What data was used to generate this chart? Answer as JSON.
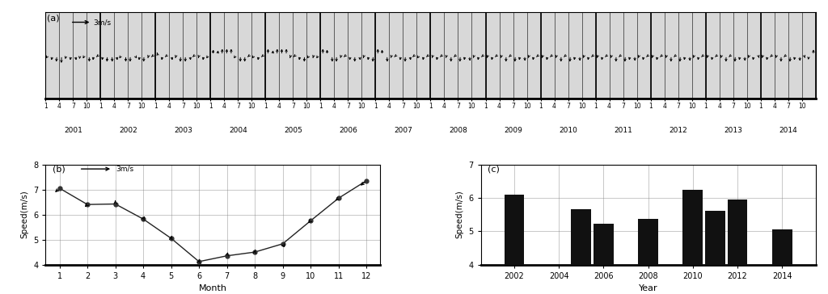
{
  "panel_a_label": "(a)",
  "panel_b_label": "(b)",
  "panel_c_label": "(c)",
  "years": [
    2001,
    2002,
    2003,
    2004,
    2005,
    2006,
    2007,
    2008,
    2009,
    2010,
    2011,
    2012,
    2013,
    2014
  ],
  "months_tick": [
    1,
    4,
    7,
    10
  ],
  "panel_b_months": [
    1,
    2,
    3,
    4,
    5,
    6,
    7,
    8,
    9,
    10,
    11,
    12
  ],
  "panel_b_speeds": [
    7.05,
    6.4,
    6.42,
    5.82,
    5.05,
    4.12,
    4.35,
    4.5,
    4.83,
    5.75,
    6.65,
    7.35
  ],
  "panel_b_arrow_u": [
    -1.2,
    -0.8,
    0.0,
    0.5,
    0.2,
    0.2,
    0.2,
    0.2,
    0.4,
    -0.8,
    -1.0,
    -1.5
  ],
  "panel_b_arrow_v": [
    -1.8,
    -1.2,
    1.2,
    1.4,
    1.4,
    1.4,
    1.2,
    1.4,
    -1.2,
    -1.2,
    -1.2,
    -2.0
  ],
  "panel_b_ylim": [
    4.0,
    8.0
  ],
  "panel_b_yticks": [
    4,
    5,
    6,
    7,
    8
  ],
  "panel_b_xlabel": "Month",
  "panel_b_ylabel": "Speed(m/s)",
  "panel_c_bar_years": [
    2002,
    2005,
    2006,
    2008,
    2010,
    2011,
    2012,
    2014
  ],
  "panel_c_bar_speeds": [
    6.1,
    5.65,
    5.22,
    5.38,
    6.25,
    5.62,
    5.95,
    5.05
  ],
  "panel_c_ylim": [
    4.0,
    7.0
  ],
  "panel_c_yticks": [
    4,
    5,
    6,
    7
  ],
  "panel_c_xticks": [
    2002,
    2004,
    2006,
    2008,
    2010,
    2012,
    2014
  ],
  "panel_c_xlabel": "Year",
  "panel_c_ylabel": "Speed(m/s)",
  "wind_data": [
    {
      "year": 2001,
      "month": 1,
      "u": -2.2,
      "v": -0.8
    },
    {
      "year": 2001,
      "month": 2,
      "u": -1.8,
      "v": -1.8
    },
    {
      "year": 2001,
      "month": 3,
      "u": -1.2,
      "v": -2.2
    },
    {
      "year": 2001,
      "month": 4,
      "u": -0.4,
      "v": -2.5
    },
    {
      "year": 2001,
      "month": 5,
      "u": -1.8,
      "v": -1.5
    },
    {
      "year": 2001,
      "month": 6,
      "u": -0.8,
      "v": -1.8
    },
    {
      "year": 2001,
      "month": 7,
      "u": 1.5,
      "v": -1.8
    },
    {
      "year": 2001,
      "month": 8,
      "u": -0.8,
      "v": -1.5
    },
    {
      "year": 2001,
      "month": 9,
      "u": -1.8,
      "v": -0.8
    },
    {
      "year": 2001,
      "month": 10,
      "u": 0.4,
      "v": -2.2
    },
    {
      "year": 2001,
      "month": 11,
      "u": -1.2,
      "v": -1.8
    },
    {
      "year": 2001,
      "month": 12,
      "u": -2.2,
      "v": -0.4
    },
    {
      "year": 2002,
      "month": 1,
      "u": -1.2,
      "v": -1.8
    },
    {
      "year": 2002,
      "month": 2,
      "u": -0.8,
      "v": -2.2
    },
    {
      "year": 2002,
      "month": 3,
      "u": 0.4,
      "v": -2.2
    },
    {
      "year": 2002,
      "month": 4,
      "u": 1.2,
      "v": -1.8
    },
    {
      "year": 2002,
      "month": 5,
      "u": -2.2,
      "v": -0.8
    },
    {
      "year": 2002,
      "month": 6,
      "u": 0.0,
      "v": -2.2
    },
    {
      "year": 2002,
      "month": 7,
      "u": -0.4,
      "v": -2.2
    },
    {
      "year": 2002,
      "month": 8,
      "u": 2.2,
      "v": -0.8
    },
    {
      "year": 2002,
      "month": 9,
      "u": -0.8,
      "v": -1.8
    },
    {
      "year": 2002,
      "month": 10,
      "u": -0.8,
      "v": -2.2
    },
    {
      "year": 2002,
      "month": 11,
      "u": -1.8,
      "v": -1.2
    },
    {
      "year": 2002,
      "month": 12,
      "u": -2.2,
      "v": -0.4
    },
    {
      "year": 2003,
      "month": 1,
      "u": -1.8,
      "v": 1.2
    },
    {
      "year": 2003,
      "month": 2,
      "u": -1.2,
      "v": -1.8
    },
    {
      "year": 2003,
      "month": 3,
      "u": -2.2,
      "v": -0.4
    },
    {
      "year": 2003,
      "month": 4,
      "u": 1.2,
      "v": -1.8
    },
    {
      "year": 2003,
      "month": 5,
      "u": -1.8,
      "v": -1.2
    },
    {
      "year": 2003,
      "month": 6,
      "u": -0.8,
      "v": -2.2
    },
    {
      "year": 2003,
      "month": 7,
      "u": 0.0,
      "v": -2.2
    },
    {
      "year": 2003,
      "month": 8,
      "u": 1.2,
      "v": -1.8
    },
    {
      "year": 2003,
      "month": 9,
      "u": -2.2,
      "v": -0.4
    },
    {
      "year": 2003,
      "month": 10,
      "u": -1.8,
      "v": -1.2
    },
    {
      "year": 2003,
      "month": 11,
      "u": -1.2,
      "v": -1.8
    },
    {
      "year": 2003,
      "month": 12,
      "u": -2.2,
      "v": -0.8
    },
    {
      "year": 2004,
      "month": 1,
      "u": 0.8,
      "v": 2.0
    },
    {
      "year": 2004,
      "month": 2,
      "u": 1.2,
      "v": 1.8
    },
    {
      "year": 2004,
      "month": 3,
      "u": 0.4,
      "v": 2.2
    },
    {
      "year": 2004,
      "month": 4,
      "u": 0.4,
      "v": 2.2
    },
    {
      "year": 2004,
      "month": 5,
      "u": 0.0,
      "v": 2.2
    },
    {
      "year": 2004,
      "month": 6,
      "u": -2.2,
      "v": -0.8
    },
    {
      "year": 2004,
      "month": 7,
      "u": 0.0,
      "v": -2.2
    },
    {
      "year": 2004,
      "month": 8,
      "u": -0.4,
      "v": -2.2
    },
    {
      "year": 2004,
      "month": 9,
      "u": -2.2,
      "v": -0.4
    },
    {
      "year": 2004,
      "month": 10,
      "u": -2.2,
      "v": -0.8
    },
    {
      "year": 2004,
      "month": 11,
      "u": -1.2,
      "v": -1.8
    },
    {
      "year": 2004,
      "month": 12,
      "u": -2.2,
      "v": -0.4
    },
    {
      "year": 2005,
      "month": 1,
      "u": 0.4,
      "v": 2.2
    },
    {
      "year": 2005,
      "month": 2,
      "u": 1.2,
      "v": 1.8
    },
    {
      "year": 2005,
      "month": 3,
      "u": 0.4,
      "v": 2.2
    },
    {
      "year": 2005,
      "month": 4,
      "u": 0.4,
      "v": 2.2
    },
    {
      "year": 2005,
      "month": 5,
      "u": 0.4,
      "v": 2.2
    },
    {
      "year": 2005,
      "month": 6,
      "u": -1.8,
      "v": -1.2
    },
    {
      "year": 2005,
      "month": 7,
      "u": -2.2,
      "v": -0.4
    },
    {
      "year": 2005,
      "month": 8,
      "u": -1.2,
      "v": -1.8
    },
    {
      "year": 2005,
      "month": 9,
      "u": -0.4,
      "v": -2.2
    },
    {
      "year": 2005,
      "month": 10,
      "u": -2.2,
      "v": -0.8
    },
    {
      "year": 2005,
      "month": 11,
      "u": -1.8,
      "v": -1.2
    },
    {
      "year": 2005,
      "month": 12,
      "u": -2.2,
      "v": -0.8
    },
    {
      "year": 2006,
      "month": 1,
      "u": 0.0,
      "v": 2.2
    },
    {
      "year": 2006,
      "month": 2,
      "u": -0.8,
      "v": 2.0
    },
    {
      "year": 2006,
      "month": 3,
      "u": 0.4,
      "v": -2.2
    },
    {
      "year": 2006,
      "month": 4,
      "u": -0.4,
      "v": -2.2
    },
    {
      "year": 2006,
      "month": 5,
      "u": -1.8,
      "v": -1.2
    },
    {
      "year": 2006,
      "month": 6,
      "u": -2.2,
      "v": -0.4
    },
    {
      "year": 2006,
      "month": 7,
      "u": -1.2,
      "v": -1.8
    },
    {
      "year": 2006,
      "month": 8,
      "u": -0.4,
      "v": -2.2
    },
    {
      "year": 2006,
      "month": 9,
      "u": 1.2,
      "v": -1.8
    },
    {
      "year": 2006,
      "month": 10,
      "u": -1.8,
      "v": -1.2
    },
    {
      "year": 2006,
      "month": 11,
      "u": -1.2,
      "v": -1.8
    },
    {
      "year": 2006,
      "month": 12,
      "u": -0.8,
      "v": -2.2
    },
    {
      "year": 2007,
      "month": 1,
      "u": 0.0,
      "v": 2.2
    },
    {
      "year": 2007,
      "month": 2,
      "u": -0.8,
      "v": 2.0
    },
    {
      "year": 2007,
      "month": 3,
      "u": 0.4,
      "v": -2.2
    },
    {
      "year": 2007,
      "month": 4,
      "u": -1.8,
      "v": -1.2
    },
    {
      "year": 2007,
      "month": 5,
      "u": -2.2,
      "v": -0.4
    },
    {
      "year": 2007,
      "month": 6,
      "u": -1.2,
      "v": -1.8
    },
    {
      "year": 2007,
      "month": 7,
      "u": -0.4,
      "v": -2.2
    },
    {
      "year": 2007,
      "month": 8,
      "u": 1.2,
      "v": -1.8
    },
    {
      "year": 2007,
      "month": 9,
      "u": -2.2,
      "v": -0.4
    },
    {
      "year": 2007,
      "month": 10,
      "u": -2.2,
      "v": -0.8
    },
    {
      "year": 2007,
      "month": 11,
      "u": -1.2,
      "v": -1.8
    },
    {
      "year": 2007,
      "month": 12,
      "u": -2.2,
      "v": -0.4
    },
    {
      "year": 2008,
      "month": 1,
      "u": -1.8,
      "v": -1.2
    },
    {
      "year": 2008,
      "month": 2,
      "u": -1.2,
      "v": -1.8
    },
    {
      "year": 2008,
      "month": 3,
      "u": -2.2,
      "v": -0.4
    },
    {
      "year": 2008,
      "month": 4,
      "u": -1.8,
      "v": -1.2
    },
    {
      "year": 2008,
      "month": 5,
      "u": -0.4,
      "v": -2.2
    },
    {
      "year": 2008,
      "month": 6,
      "u": -2.2,
      "v": -0.4
    },
    {
      "year": 2008,
      "month": 7,
      "u": -0.8,
      "v": -2.2
    },
    {
      "year": 2008,
      "month": 8,
      "u": -1.2,
      "v": -1.8
    },
    {
      "year": 2008,
      "month": 9,
      "u": 0.8,
      "v": -2.0
    },
    {
      "year": 2008,
      "month": 10,
      "u": -1.8,
      "v": -1.2
    },
    {
      "year": 2008,
      "month": 11,
      "u": -1.2,
      "v": -1.8
    },
    {
      "year": 2008,
      "month": 12,
      "u": -2.2,
      "v": -0.4
    },
    {
      "year": 2009,
      "month": 1,
      "u": -1.8,
      "v": -1.2
    },
    {
      "year": 2009,
      "month": 2,
      "u": -1.2,
      "v": -1.8
    },
    {
      "year": 2009,
      "month": 3,
      "u": -2.2,
      "v": -0.4
    },
    {
      "year": 2009,
      "month": 4,
      "u": -1.8,
      "v": -1.2
    },
    {
      "year": 2009,
      "month": 5,
      "u": -0.4,
      "v": -2.2
    },
    {
      "year": 2009,
      "month": 6,
      "u": -2.2,
      "v": -0.4
    },
    {
      "year": 2009,
      "month": 7,
      "u": -0.8,
      "v": -2.2
    },
    {
      "year": 2009,
      "month": 8,
      "u": -1.2,
      "v": -1.8
    },
    {
      "year": 2009,
      "month": 9,
      "u": 0.8,
      "v": -2.0
    },
    {
      "year": 2009,
      "month": 10,
      "u": -1.8,
      "v": -1.2
    },
    {
      "year": 2009,
      "month": 11,
      "u": -1.2,
      "v": -1.8
    },
    {
      "year": 2009,
      "month": 12,
      "u": -2.2,
      "v": -0.4
    },
    {
      "year": 2010,
      "month": 1,
      "u": -1.8,
      "v": -1.2
    },
    {
      "year": 2010,
      "month": 2,
      "u": -1.2,
      "v": -1.8
    },
    {
      "year": 2010,
      "month": 3,
      "u": -2.2,
      "v": -0.4
    },
    {
      "year": 2010,
      "month": 4,
      "u": -1.8,
      "v": -1.2
    },
    {
      "year": 2010,
      "month": 5,
      "u": -0.4,
      "v": -2.2
    },
    {
      "year": 2010,
      "month": 6,
      "u": -2.2,
      "v": -0.4
    },
    {
      "year": 2010,
      "month": 7,
      "u": -0.8,
      "v": -2.2
    },
    {
      "year": 2010,
      "month": 8,
      "u": -1.2,
      "v": -1.8
    },
    {
      "year": 2010,
      "month": 9,
      "u": 0.8,
      "v": -2.0
    },
    {
      "year": 2010,
      "month": 10,
      "u": -1.8,
      "v": -1.2
    },
    {
      "year": 2010,
      "month": 11,
      "u": -1.2,
      "v": -1.8
    },
    {
      "year": 2010,
      "month": 12,
      "u": -2.2,
      "v": -0.4
    },
    {
      "year": 2011,
      "month": 1,
      "u": -1.8,
      "v": -1.2
    },
    {
      "year": 2011,
      "month": 2,
      "u": -1.2,
      "v": -1.8
    },
    {
      "year": 2011,
      "month": 3,
      "u": -2.2,
      "v": -0.4
    },
    {
      "year": 2011,
      "month": 4,
      "u": -1.8,
      "v": -1.2
    },
    {
      "year": 2011,
      "month": 5,
      "u": -0.4,
      "v": -2.2
    },
    {
      "year": 2011,
      "month": 6,
      "u": -2.2,
      "v": -0.4
    },
    {
      "year": 2011,
      "month": 7,
      "u": -0.8,
      "v": -2.2
    },
    {
      "year": 2011,
      "month": 8,
      "u": -1.2,
      "v": -1.8
    },
    {
      "year": 2011,
      "month": 9,
      "u": 0.8,
      "v": -2.0
    },
    {
      "year": 2011,
      "month": 10,
      "u": -1.8,
      "v": -1.2
    },
    {
      "year": 2011,
      "month": 11,
      "u": -1.2,
      "v": -1.8
    },
    {
      "year": 2011,
      "month": 12,
      "u": -2.2,
      "v": -0.4
    },
    {
      "year": 2012,
      "month": 1,
      "u": -1.8,
      "v": -1.2
    },
    {
      "year": 2012,
      "month": 2,
      "u": -1.2,
      "v": -1.8
    },
    {
      "year": 2012,
      "month": 3,
      "u": -2.2,
      "v": -0.4
    },
    {
      "year": 2012,
      "month": 4,
      "u": -1.8,
      "v": -1.2
    },
    {
      "year": 2012,
      "month": 5,
      "u": -0.4,
      "v": -2.2
    },
    {
      "year": 2012,
      "month": 6,
      "u": -2.2,
      "v": -0.4
    },
    {
      "year": 2012,
      "month": 7,
      "u": -0.8,
      "v": -2.2
    },
    {
      "year": 2012,
      "month": 8,
      "u": -1.2,
      "v": -1.8
    },
    {
      "year": 2012,
      "month": 9,
      "u": 0.8,
      "v": -2.0
    },
    {
      "year": 2012,
      "month": 10,
      "u": -1.8,
      "v": -1.2
    },
    {
      "year": 2012,
      "month": 11,
      "u": -1.2,
      "v": -1.8
    },
    {
      "year": 2012,
      "month": 12,
      "u": -2.2,
      "v": -0.4
    },
    {
      "year": 2013,
      "month": 1,
      "u": -1.8,
      "v": -1.2
    },
    {
      "year": 2013,
      "month": 2,
      "u": -1.2,
      "v": -1.8
    },
    {
      "year": 2013,
      "month": 3,
      "u": -2.2,
      "v": -0.4
    },
    {
      "year": 2013,
      "month": 4,
      "u": -1.8,
      "v": -1.2
    },
    {
      "year": 2013,
      "month": 5,
      "u": -0.4,
      "v": -2.2
    },
    {
      "year": 2013,
      "month": 6,
      "u": -2.2,
      "v": -0.4
    },
    {
      "year": 2013,
      "month": 7,
      "u": -0.8,
      "v": -2.2
    },
    {
      "year": 2013,
      "month": 8,
      "u": -1.2,
      "v": -1.8
    },
    {
      "year": 2013,
      "month": 9,
      "u": 0.8,
      "v": -2.0
    },
    {
      "year": 2013,
      "month": 10,
      "u": -1.8,
      "v": -1.2
    },
    {
      "year": 2013,
      "month": 11,
      "u": -1.2,
      "v": -1.8
    },
    {
      "year": 2013,
      "month": 12,
      "u": 1.8,
      "v": -1.2
    },
    {
      "year": 2014,
      "month": 1,
      "u": -1.8,
      "v": -1.2
    },
    {
      "year": 2014,
      "month": 2,
      "u": -1.2,
      "v": -1.8
    },
    {
      "year": 2014,
      "month": 3,
      "u": -2.2,
      "v": -0.4
    },
    {
      "year": 2014,
      "month": 4,
      "u": -1.8,
      "v": -1.2
    },
    {
      "year": 2014,
      "month": 5,
      "u": -0.4,
      "v": -2.2
    },
    {
      "year": 2014,
      "month": 6,
      "u": -2.2,
      "v": -0.4
    },
    {
      "year": 2014,
      "month": 7,
      "u": -0.8,
      "v": -2.2
    },
    {
      "year": 2014,
      "month": 8,
      "u": -1.2,
      "v": -1.8
    },
    {
      "year": 2014,
      "month": 9,
      "u": 0.8,
      "v": -2.0
    },
    {
      "year": 2014,
      "month": 10,
      "u": 1.8,
      "v": -1.2
    }
  ],
  "bg_color": "#d8d8d8",
  "bar_color": "#111111",
  "line_color": "#222222"
}
